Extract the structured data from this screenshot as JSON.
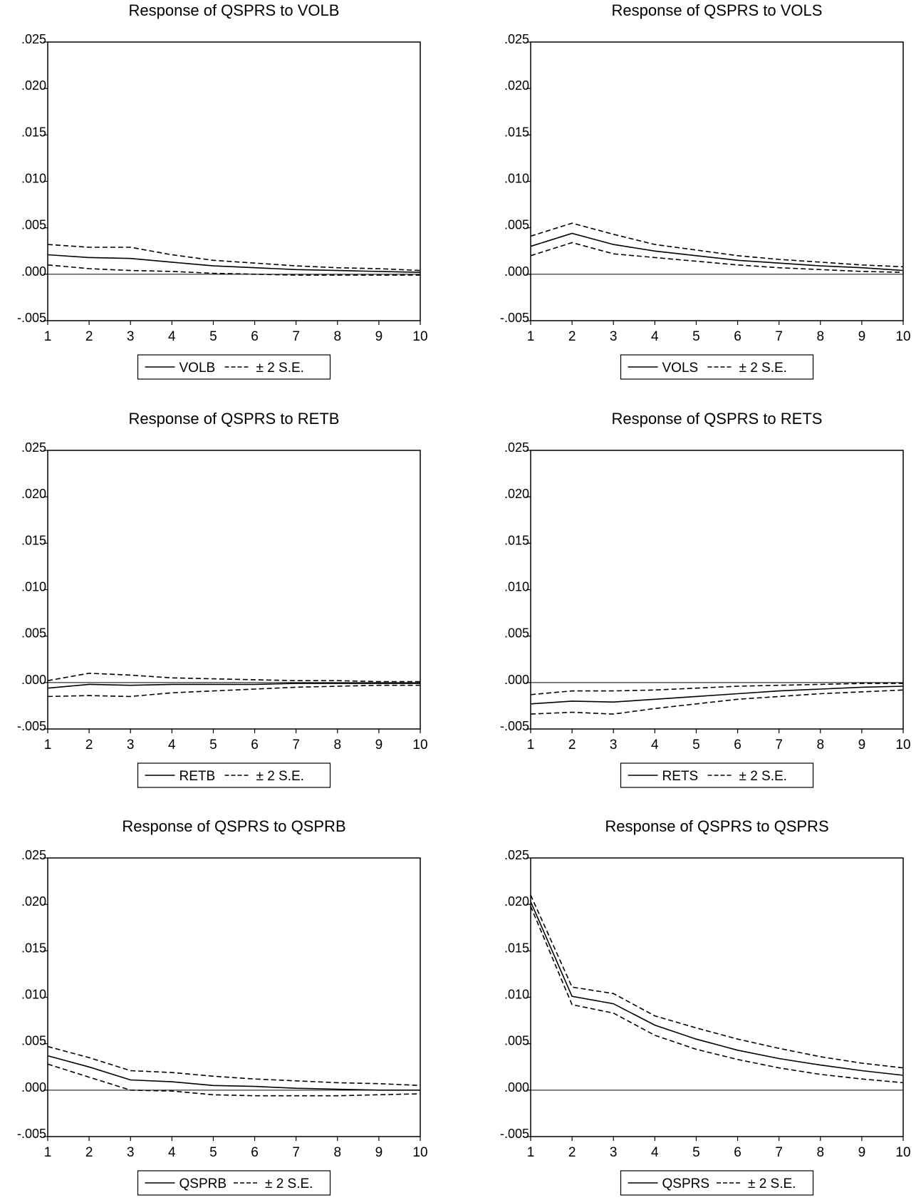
{
  "colors": {
    "line": "#000000",
    "background": "#ffffff"
  },
  "chart_data": [
    {
      "type": "line",
      "title": "Response of QSPRS to VOLB",
      "x": [
        1,
        2,
        3,
        4,
        5,
        6,
        7,
        8,
        9,
        10
      ],
      "ylim": [
        -0.005,
        0.025
      ],
      "yticks": [
        ".025",
        ".020",
        ".015",
        ".010",
        ".005",
        ".000",
        "-.005"
      ],
      "legend_placement": "bottom-center",
      "series": [
        {
          "name": "VOLB",
          "style": "solid",
          "values": [
            0.0021,
            0.0018,
            0.0017,
            0.0013,
            0.0009,
            0.0007,
            0.0005,
            0.0004,
            0.0003,
            0.0002
          ]
        },
        {
          "name": "± 2 S.E.",
          "style": "dashed",
          "values": [
            0.0032,
            0.0029,
            0.0029,
            0.0021,
            0.0015,
            0.0012,
            0.0009,
            0.0007,
            0.0006,
            0.0004
          ]
        },
        {
          "style": "dashed",
          "values": [
            0.001,
            0.0006,
            0.0004,
            0.0003,
            0.0001,
            0.0,
            -0.0001,
            -0.0001,
            -0.0001,
            -0.0001
          ]
        }
      ]
    },
    {
      "type": "line",
      "title": "Response of QSPRS to VOLS",
      "x": [
        1,
        2,
        3,
        4,
        5,
        6,
        7,
        8,
        9,
        10
      ],
      "ylim": [
        -0.005,
        0.025
      ],
      "yticks": [
        ".025",
        ".020",
        ".015",
        ".010",
        ".005",
        ".000",
        "-.005"
      ],
      "legend_placement": "bottom-center",
      "series": [
        {
          "name": "VOLS",
          "style": "solid",
          "values": [
            0.003,
            0.0044,
            0.0032,
            0.0025,
            0.002,
            0.0015,
            0.0012,
            0.0009,
            0.0007,
            0.0004
          ]
        },
        {
          "name": "± 2 S.E.",
          "style": "dashed",
          "values": [
            0.0041,
            0.0055,
            0.0043,
            0.0032,
            0.0026,
            0.002,
            0.0016,
            0.0013,
            0.001,
            0.0008
          ]
        },
        {
          "style": "dashed",
          "values": [
            0.002,
            0.0034,
            0.0022,
            0.0018,
            0.0014,
            0.001,
            0.0007,
            0.0005,
            0.0003,
            0.0002
          ]
        }
      ]
    },
    {
      "type": "line",
      "title": "Response of QSPRS to RETB",
      "x": [
        1,
        2,
        3,
        4,
        5,
        6,
        7,
        8,
        9,
        10
      ],
      "ylim": [
        -0.005,
        0.025
      ],
      "yticks": [
        ".025",
        ".020",
        ".015",
        ".010",
        ".005",
        ".000",
        "-.005"
      ],
      "legend_placement": "bottom-center",
      "series": [
        {
          "name": "RETB",
          "style": "solid",
          "values": [
            -0.0006,
            -0.0002,
            -0.0003,
            -0.0002,
            -0.0002,
            -0.0002,
            -0.0001,
            -0.0001,
            -0.0001,
            -0.0001
          ]
        },
        {
          "name": "± 2 S.E.",
          "style": "dashed",
          "values": [
            0.0002,
            0.001,
            0.0008,
            0.0005,
            0.0004,
            0.0003,
            0.0002,
            0.0002,
            0.0001,
            0.0001
          ]
        },
        {
          "style": "dashed",
          "values": [
            -0.0015,
            -0.0014,
            -0.0015,
            -0.0011,
            -0.0009,
            -0.0007,
            -0.0005,
            -0.0004,
            -0.0003,
            -0.0003
          ]
        }
      ]
    },
    {
      "type": "line",
      "title": "Response of QSPRS to RETS",
      "x": [
        1,
        2,
        3,
        4,
        5,
        6,
        7,
        8,
        9,
        10
      ],
      "ylim": [
        -0.005,
        0.025
      ],
      "yticks": [
        ".025",
        ".020",
        ".015",
        ".010",
        ".005",
        ".000",
        "-.005"
      ],
      "legend_placement": "bottom-center",
      "series": [
        {
          "name": "RETS",
          "style": "solid",
          "values": [
            -0.0023,
            -0.002,
            -0.0021,
            -0.0018,
            -0.0015,
            -0.0012,
            -0.0009,
            -0.0007,
            -0.0005,
            -0.0004
          ]
        },
        {
          "name": "± 2 S.E.",
          "style": "dashed",
          "values": [
            -0.0013,
            -0.0009,
            -0.0009,
            -0.0008,
            -0.0006,
            -0.0004,
            -0.0003,
            -0.0002,
            -0.0001,
            -0.0001
          ]
        },
        {
          "style": "dashed",
          "values": [
            -0.0034,
            -0.0032,
            -0.0034,
            -0.0028,
            -0.0023,
            -0.0018,
            -0.0015,
            -0.0012,
            -0.001,
            -0.0008
          ]
        }
      ]
    },
    {
      "type": "line",
      "title": "Response of QSPRS to QSPRB",
      "x": [
        1,
        2,
        3,
        4,
        5,
        6,
        7,
        8,
        9,
        10
      ],
      "ylim": [
        -0.005,
        0.025
      ],
      "yticks": [
        ".025",
        ".020",
        ".015",
        ".010",
        ".005",
        ".000",
        "-.005"
      ],
      "legend_placement": "bottom-center",
      "series": [
        {
          "name": "QSPRB",
          "style": "solid",
          "values": [
            0.0037,
            0.0025,
            0.0011,
            0.0009,
            0.0005,
            0.0004,
            0.0002,
            0.0001,
            0.0,
            0.0
          ]
        },
        {
          "name": "± 2 S.E.",
          "style": "dashed",
          "values": [
            0.0047,
            0.0035,
            0.0021,
            0.0019,
            0.0015,
            0.0012,
            0.001,
            0.0008,
            0.0007,
            0.0005
          ]
        },
        {
          "style": "dashed",
          "values": [
            0.0028,
            0.0014,
            0.0,
            -0.0001,
            -0.0005,
            -0.0006,
            -0.0006,
            -0.0006,
            -0.0005,
            -0.0004
          ]
        }
      ]
    },
    {
      "type": "line",
      "title": "Response of QSPRS to QSPRS",
      "x": [
        1,
        2,
        3,
        4,
        5,
        6,
        7,
        8,
        9,
        10
      ],
      "ylim": [
        -0.005,
        0.025
      ],
      "yticks": [
        ".025",
        ".020",
        ".015",
        ".010",
        ".005",
        ".000",
        "-.005"
      ],
      "legend_placement": "bottom-center",
      "series": [
        {
          "name": "QSPRS",
          "style": "solid",
          "values": [
            0.0203,
            0.0101,
            0.0093,
            0.007,
            0.0055,
            0.0043,
            0.0034,
            0.0027,
            0.0021,
            0.0016
          ]
        },
        {
          "name": "± 2 S.E.",
          "style": "dashed",
          "values": [
            0.021,
            0.0111,
            0.0104,
            0.008,
            0.0067,
            0.0055,
            0.0045,
            0.0036,
            0.0029,
            0.0024
          ]
        },
        {
          "style": "dashed",
          "values": [
            0.0198,
            0.0092,
            0.0083,
            0.0059,
            0.0044,
            0.0033,
            0.0024,
            0.0017,
            0.0012,
            0.0008
          ]
        }
      ]
    }
  ]
}
